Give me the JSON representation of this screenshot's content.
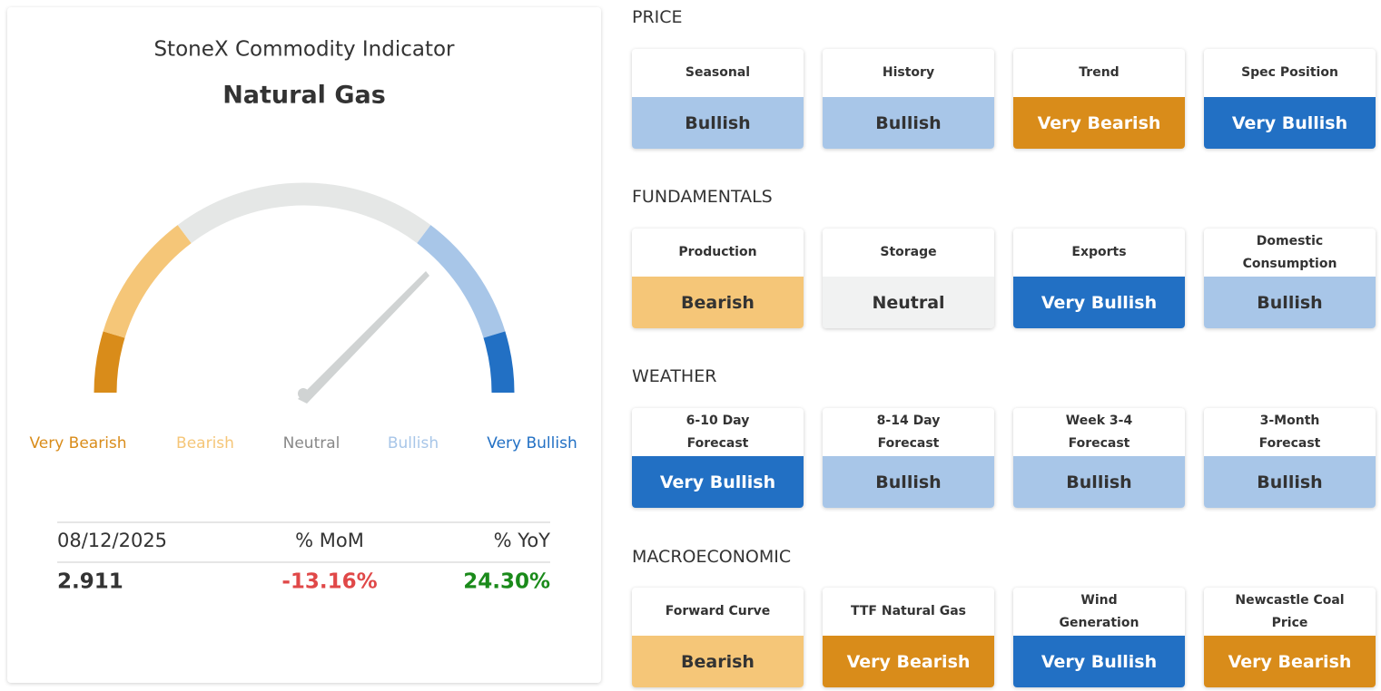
{
  "gauge_card": {
    "title": "StoneX Commodity Indicator",
    "subtitle": "Natural Gas",
    "scale": [
      {
        "label": "Very Bearish",
        "color": "#d98c1a"
      },
      {
        "label": "Bearish",
        "color": "#f5c678"
      },
      {
        "label": "Neutral",
        "color": "#888888",
        "arc_color": "#e5e7e6"
      },
      {
        "label": "Bullish",
        "color": "#a8c6e8"
      },
      {
        "label": "Very Bullish",
        "color": "#2270c4"
      }
    ],
    "table": {
      "header": [
        "08/12/2025",
        "% MoM",
        "% YoY"
      ],
      "values": [
        "2.911",
        "-13.16%",
        "24.30%"
      ],
      "value_colors": [
        "#333333",
        "#e04848",
        "#1a8a1a"
      ]
    }
  },
  "sections": [
    {
      "title": "PRICE",
      "items": [
        {
          "name": "Seasonal",
          "signal": "Bullish",
          "color": "#a8c6e8",
          "text_color": "#333333"
        },
        {
          "name": "History",
          "signal": "Bullish",
          "color": "#a8c6e8",
          "text_color": "#333333"
        },
        {
          "name": "Trend",
          "signal": "Very Bearish",
          "color": "#d98c1a",
          "text_color": "#ffffff"
        },
        {
          "name": "Spec Position",
          "signal": "Very Bullish",
          "color": "#2270c4",
          "text_color": "#ffffff"
        }
      ]
    },
    {
      "title": "FUNDAMENTALS",
      "items": [
        {
          "name": "Production",
          "signal": "Bearish",
          "color": "#f5c678",
          "text_color": "#333333"
        },
        {
          "name": "Storage",
          "signal": "Neutral",
          "color": "#f1f2f2",
          "text_color": "#333333"
        },
        {
          "name": "Exports",
          "signal": "Very Bullish",
          "color": "#2270c4",
          "text_color": "#ffffff"
        },
        {
          "name": "Domestic Consumption",
          "signal": "Bullish",
          "color": "#a8c6e8",
          "text_color": "#333333"
        }
      ]
    },
    {
      "title": "WEATHER",
      "items": [
        {
          "name": "6-10 Day Forecast",
          "signal": "Very Bullish",
          "color": "#2270c4",
          "text_color": "#ffffff"
        },
        {
          "name": "8-14 Day Forecast",
          "signal": "Bullish",
          "color": "#a8c6e8",
          "text_color": "#333333"
        },
        {
          "name": "Week 3-4 Forecast",
          "signal": "Bullish",
          "color": "#a8c6e8",
          "text_color": "#333333"
        },
        {
          "name": "3-Month Forecast",
          "signal": "Bullish",
          "color": "#a8c6e8",
          "text_color": "#333333"
        }
      ]
    },
    {
      "title": "MACROECONOMIC",
      "items": [
        {
          "name": "Forward Curve",
          "signal": "Bearish",
          "color": "#f5c678",
          "text_color": "#333333"
        },
        {
          "name": "TTF Natural Gas",
          "signal": "Very Bearish",
          "color": "#d98c1a",
          "text_color": "#ffffff"
        },
        {
          "name": "Wind Generation",
          "signal": "Very Bullish",
          "color": "#2270c4",
          "text_color": "#ffffff"
        },
        {
          "name": "Newcastle Coal Price",
          "signal": "Very Bearish",
          "color": "#d98c1a",
          "text_color": "#ffffff"
        }
      ]
    }
  ]
}
